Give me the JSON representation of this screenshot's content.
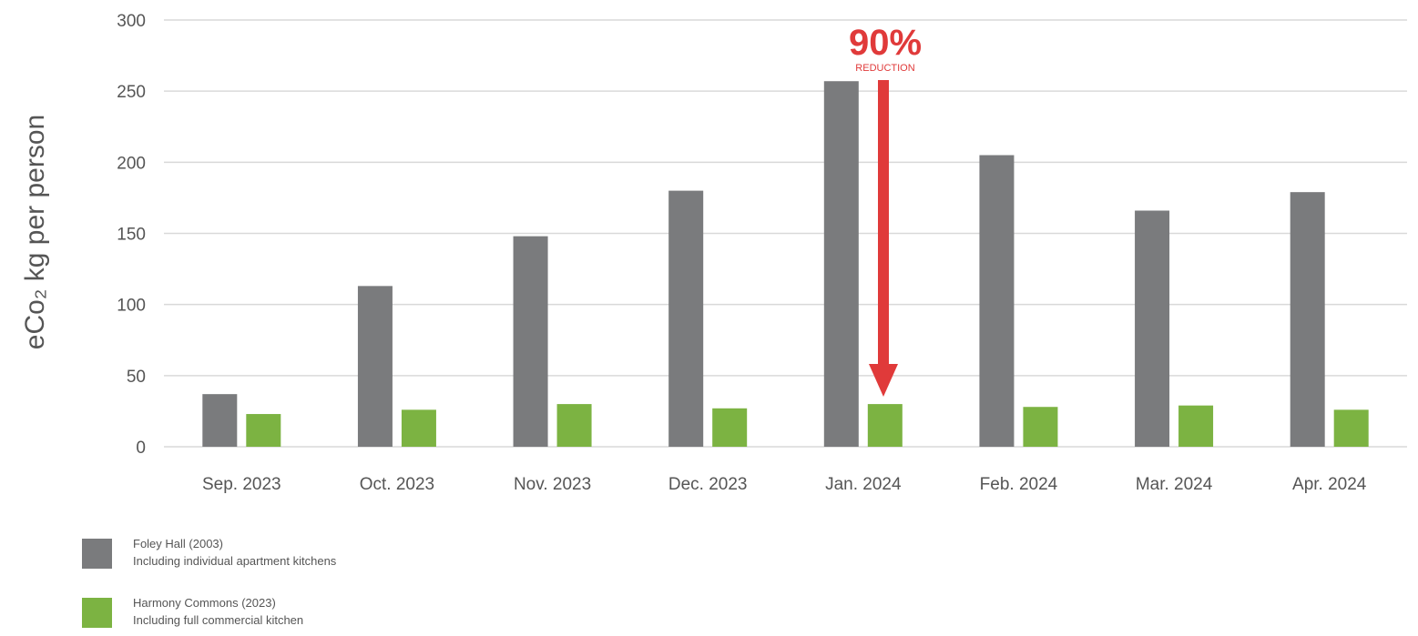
{
  "chart_data": {
    "type": "bar",
    "ylabel": "eCo₂ kg per person",
    "yticks": [
      0,
      50,
      100,
      150,
      200,
      250,
      300
    ],
    "ylim": [
      0,
      300
    ],
    "grid": true,
    "categories": [
      "Sep. 2023",
      "Oct. 2023",
      "Nov. 2023",
      "Dec. 2023",
      "Jan. 2024",
      "Feb. 2024",
      "Mar. 2024",
      "Apr. 2024"
    ],
    "series": [
      {
        "name": "Foley Hall (2003)",
        "values": [
          37,
          113,
          148,
          180,
          257,
          205,
          166,
          179
        ]
      },
      {
        "name": "Harmony Commons (2023)",
        "values": [
          23,
          26,
          30,
          27,
          30,
          28,
          29,
          26
        ]
      }
    ],
    "annotation": {
      "big": "90%",
      "small": "REDUCTION",
      "category": "Jan. 2024"
    },
    "colors": {
      "series1": "#7a7b7d",
      "series2": "#7cb342",
      "annotation": "#e03a3a",
      "grid": "#d9d9d9"
    },
    "legend_position": "bottom-left"
  },
  "legend": [
    {
      "line1": "Foley Hall (2003)",
      "line2": "Including individual apartment kitchens"
    },
    {
      "line1": "Harmony Commons (2023)",
      "line2": "Including full commercial kitchen"
    }
  ]
}
